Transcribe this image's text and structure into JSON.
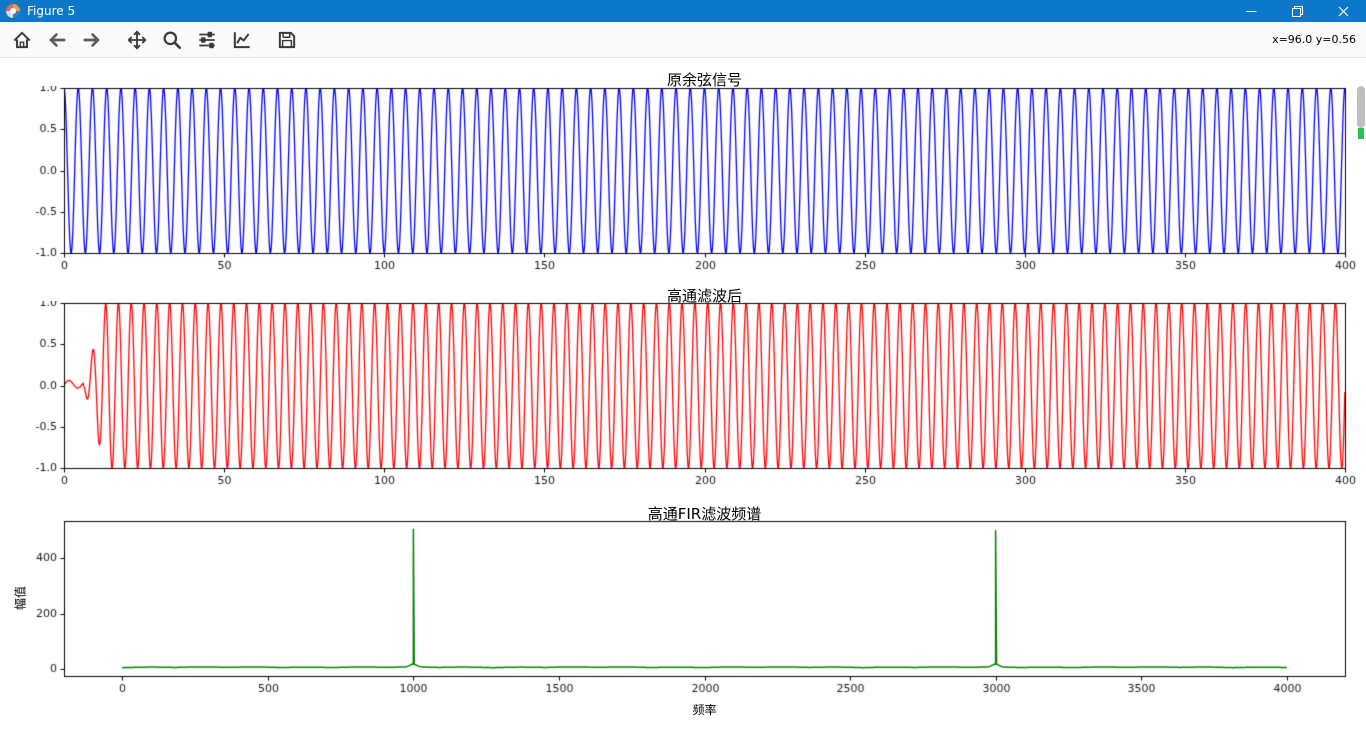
{
  "window": {
    "title": "Figure 5"
  },
  "toolbar": {
    "buttons": [
      {
        "name": "home"
      },
      {
        "name": "back"
      },
      {
        "name": "forward"
      },
      {
        "name": "pan"
      },
      {
        "name": "zoom"
      },
      {
        "name": "configure-subplots"
      },
      {
        "name": "edit-parameters"
      },
      {
        "name": "save"
      }
    ],
    "coords": "x=96.0 y=0.56"
  },
  "colors": {
    "titlebar": "#0d78c9",
    "toolbar_bg": "#fafafa",
    "icon": "#3a3a3a",
    "scrollbar_thumb": "#c0c0c0",
    "scrollbar_marker": "#2fbf4f",
    "plot1_line": "#0000ff",
    "plot2_line": "#ff0000",
    "plot3_line": "#008000"
  },
  "chart_data": [
    {
      "type": "line",
      "title": "原余弦信号",
      "line_color": "#0000ff",
      "line_width": 1.3,
      "xlim": [
        0,
        400
      ],
      "ylim": [
        -1.0,
        1.0
      ],
      "xticks": [
        0,
        50,
        100,
        150,
        200,
        250,
        300,
        350,
        400
      ],
      "xtick_labels": [
        "0",
        "50",
        "100",
        "150",
        "200",
        "250",
        "300",
        "350",
        "400"
      ],
      "yticks": [
        -1.0,
        -0.5,
        0.0,
        0.5,
        1.0
      ],
      "ytick_labels": [
        "-1.0",
        "-0.5",
        "0.0",
        "0.5",
        "1.0"
      ],
      "grid": false,
      "signal": {
        "kind": "cosine",
        "cycles": 90,
        "amplitude": 1.0,
        "x_range": [
          0,
          400
        ]
      }
    },
    {
      "type": "line",
      "title": "高通滤波后",
      "line_color": "#ff0000",
      "line_width": 1.3,
      "xlim": [
        0,
        400
      ],
      "ylim": [
        -1.0,
        1.0
      ],
      "xticks": [
        0,
        50,
        100,
        150,
        200,
        250,
        300,
        350,
        400
      ],
      "xtick_labels": [
        "0",
        "50",
        "100",
        "150",
        "200",
        "250",
        "300",
        "350",
        "400"
      ],
      "yticks": [
        -1.0,
        -0.5,
        0.0,
        0.5,
        1.0
      ],
      "ytick_labels": [
        "-1.0",
        "-0.5",
        "0.0",
        "0.5",
        "1.0"
      ],
      "grid": false,
      "signal": {
        "kind": "cosine_transient",
        "cycles": 100,
        "amplitude": 1.0,
        "transient_end": 13,
        "x_range": [
          0,
          400
        ]
      }
    },
    {
      "type": "line",
      "title": "高通FIR滤波频谱",
      "xlabel": "频率",
      "ylabel": "幅值",
      "line_color": "#008000",
      "line_width": 1.5,
      "xlim": [
        -200,
        4200
      ],
      "ylim": [
        -25,
        535
      ],
      "xticks": [
        0,
        500,
        1000,
        1500,
        2000,
        2500,
        3000,
        3500,
        4000
      ],
      "xtick_labels": [
        "0",
        "500",
        "1000",
        "1500",
        "2000",
        "2500",
        "3000",
        "3500",
        "4000"
      ],
      "yticks": [
        0,
        200,
        400
      ],
      "ytick_labels": [
        "0",
        "200",
        "400"
      ],
      "grid": false,
      "signal": {
        "kind": "spectrum",
        "baseline": 5,
        "peaks": [
          {
            "x": 1000,
            "y": 505
          },
          {
            "x": 3000,
            "y": 500
          }
        ],
        "x_range": [
          0,
          4000
        ]
      }
    }
  ]
}
